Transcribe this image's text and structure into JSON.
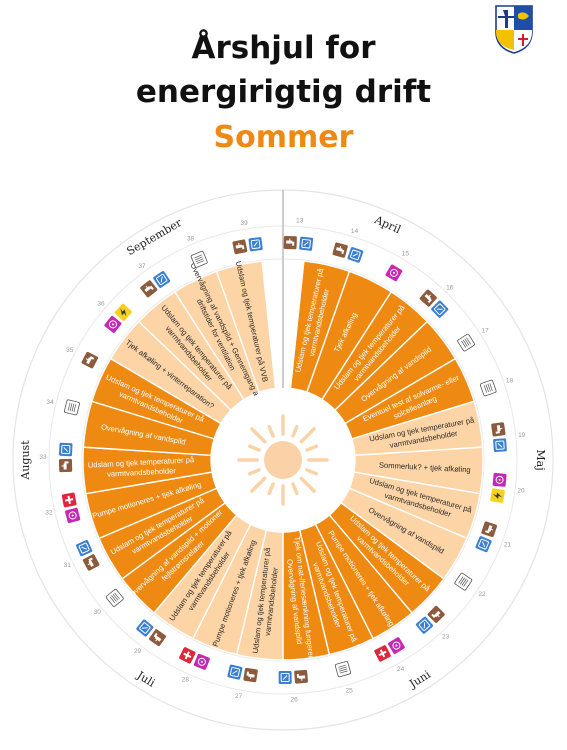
{
  "title": {
    "line1": "Årshjul for",
    "line2": "energirigtig drift"
  },
  "season": "Sommer",
  "colors": {
    "dark": "#ee8a12",
    "light": "#fdd4a6",
    "accent": "#ee8a12",
    "icon_brown": "#8c5a3c",
    "icon_blue": "#3a7fd0",
    "icon_magenta": "#c428b4",
    "icon_yellow": "#f4d21e",
    "icon_red": "#e0253c"
  },
  "months": [
    "April",
    "Maj",
    "Juni",
    "Juli",
    "August",
    "September"
  ],
  "week_numbers": [
    "13",
    "14",
    "15",
    "16",
    "17",
    "18",
    "19",
    "20",
    "21",
    "22",
    "23",
    "24",
    "25",
    "26",
    "27",
    "28",
    "29",
    "30",
    "31",
    "32",
    "33",
    "34",
    "35",
    "36",
    "37",
    "38",
    "39"
  ],
  "tasks": [
    {
      "lines": [
        "Udslam og tjek temperaturer på",
        "varmtvandsbeholder"
      ],
      "shade": "dark"
    },
    {
      "lines": [
        "Tjek afkøling"
      ],
      "shade": "dark"
    },
    {
      "lines": [
        "Udslam og tjek temperaturer på",
        "varmtvandsbeholder"
      ],
      "shade": "dark"
    },
    {
      "lines": [
        "Overvågning af vandspild"
      ],
      "shade": "dark"
    },
    {
      "lines": [
        "Eventuel test af solvarme- eller",
        "solcelleanlæg"
      ],
      "shade": "dark"
    },
    {
      "lines": [
        "Udslam og tjek temperaturer på",
        "varmtvandsbeholder"
      ],
      "shade": "light"
    },
    {
      "lines": [
        "Sommerluk? + tjek afkøling"
      ],
      "shade": "light"
    },
    {
      "lines": [
        "Udslam og tjek temperaturer på",
        "varmtvandsbeholder"
      ],
      "shade": "light"
    },
    {
      "lines": [
        "Overvågning af vandspild"
      ],
      "shade": "light"
    },
    {
      "lines": [
        "Udslam og tjek temperaturer på",
        "varmtvandsbeholder"
      ],
      "shade": "dark"
    },
    {
      "lines": [
        "Pumpe motioneres + tjek afkøling"
      ],
      "shade": "dark"
    },
    {
      "lines": [
        "Udslam og tjek temperaturer på",
        "varmtvandsbeholder"
      ],
      "shade": "dark"
    },
    {
      "lines": [
        "Tjek om nat-/feriesænkning fungerer +",
        "Overvågning af vandspild"
      ],
      "shade": "dark"
    },
    {
      "lines": [
        "Udslam og tjek temperaturer på",
        "varmtvandsbeholder"
      ],
      "shade": "light"
    },
    {
      "lines": [
        "Pumpe motioneres + tjek afkøling"
      ],
      "shade": "light"
    },
    {
      "lines": [
        "Udslam og tjek temperaturer på",
        "varmtvandsbeholder"
      ],
      "shade": "light"
    },
    {
      "lines": [
        "Overvågning af vandspild + motioner",
        "fejlstrømsrelæer"
      ],
      "shade": "dark"
    },
    {
      "lines": [
        "Udslam og tjek temperaturer på",
        "varmtvandsbeholder"
      ],
      "shade": "dark"
    },
    {
      "lines": [
        "Pumpe motioneres + tjek afkøling"
      ],
      "shade": "dark"
    },
    {
      "lines": [
        "Udslam og tjek temperaturer på",
        "varmtvandsbeholder"
      ],
      "shade": "dark"
    },
    {
      "lines": [
        "Overvågning af vandspild"
      ],
      "shade": "dark"
    },
    {
      "lines": [
        "Udslam og tjek temperaturer på",
        "varmtvandsbeholder"
      ],
      "shade": "dark"
    },
    {
      "lines": [
        "Tjek afkøling + vinterreparation?"
      ],
      "shade": "light"
    },
    {
      "lines": [
        "Udslam og tjek temperaturer på",
        "varmtvandsbeholder"
      ],
      "shade": "light"
    },
    {
      "lines": [
        "Overvågning af vandspild + Gennemgang af",
        "driftstider for ventilation"
      ],
      "shade": "light"
    },
    {
      "lines": [
        "Udslam og tjek temperaturer på VVB"
      ],
      "shade": "light"
    }
  ],
  "icon_legend": [
    "tap-icon",
    "thermostat-icon",
    "meter-icon",
    "pump-icon",
    "lightning-icon",
    "switch-icon"
  ],
  "week_icons": [
    [
      "tap-icon",
      "meter-icon"
    ],
    [
      "tap-icon",
      "meter-icon"
    ],
    [
      "pump-icon"
    ],
    [
      "tap-icon",
      "meter-icon"
    ],
    [
      "thermostat-icon"
    ],
    [
      "thermostat-icon"
    ],
    [
      "tap-icon",
      "meter-icon"
    ],
    [
      "pump-icon",
      "lightning-icon"
    ],
    [
      "tap-icon",
      "meter-icon"
    ],
    [
      "thermostat-icon"
    ],
    [
      "tap-icon",
      "meter-icon"
    ],
    [
      "pump-icon",
      "switch-icon"
    ],
    [
      "thermostat-icon"
    ],
    [
      "tap-icon",
      "meter-icon"
    ],
    [
      "tap-icon",
      "meter-icon"
    ],
    [
      "pump-icon",
      "switch-icon"
    ],
    [
      "tap-icon",
      "meter-icon"
    ],
    [
      "thermostat-icon"
    ],
    [
      "tap-icon",
      "meter-icon"
    ],
    [
      "pump-icon",
      "switch-icon"
    ],
    [
      "tap-icon",
      "meter-icon"
    ],
    [
      "thermostat-icon"
    ],
    [
      "tap-icon"
    ],
    [
      "pump-icon",
      "lightning-icon"
    ],
    [
      "tap-icon",
      "meter-icon"
    ],
    [
      "thermostat-icon"
    ],
    [
      "tap-icon",
      "meter-icon"
    ]
  ]
}
